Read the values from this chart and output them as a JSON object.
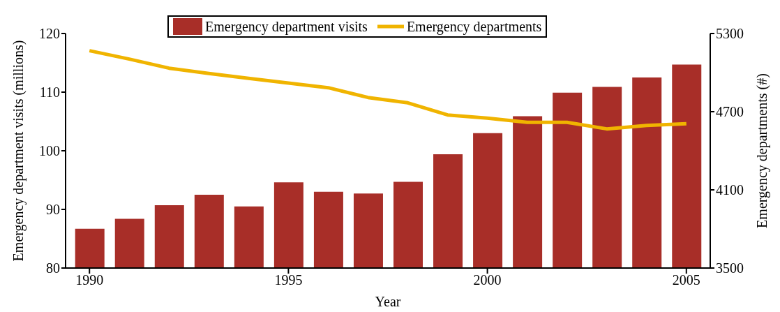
{
  "chart_data": {
    "type": "bar",
    "xlabel": "Year",
    "ylabel": "Emergency department visits (millions)",
    "y2label": "Emergency departments (#)",
    "x": [
      1990,
      1991,
      1992,
      1993,
      1994,
      1995,
      1996,
      1997,
      1998,
      1999,
      2000,
      2001,
      2002,
      2003,
      2004,
      2005
    ],
    "series": [
      {
        "name": "Emergency department visits",
        "color": "#a82e28",
        "values": [
          86.7,
          88.4,
          90.7,
          92.5,
          90.5,
          94.6,
          93.0,
          92.7,
          94.7,
          99.4,
          103.0,
          105.9,
          109.9,
          110.9,
          112.5,
          114.7
        ]
      },
      {
        "name": "Emergency departments",
        "type": "line",
        "axis": "y2",
        "color": "#f0b400",
        "values": [
          5168,
          5104,
          5034,
          4993,
          4956,
          4920,
          4884,
          4809,
          4768,
          4675,
          4651,
          4618,
          4618,
          4568,
          4594,
          4608
        ]
      }
    ],
    "xlim": [
      1989.4,
      2005.6
    ],
    "xticks": [
      1990,
      1995,
      2000,
      2005
    ],
    "ylim": [
      80,
      120
    ],
    "yticks": [
      80,
      90,
      100,
      110,
      120
    ],
    "y2lim": [
      3500,
      5300
    ],
    "y2ticks": [
      3500,
      4100,
      4700,
      5300
    ],
    "grid": false,
    "legend": "top",
    "marker": "none",
    "line_style": "solid"
  }
}
